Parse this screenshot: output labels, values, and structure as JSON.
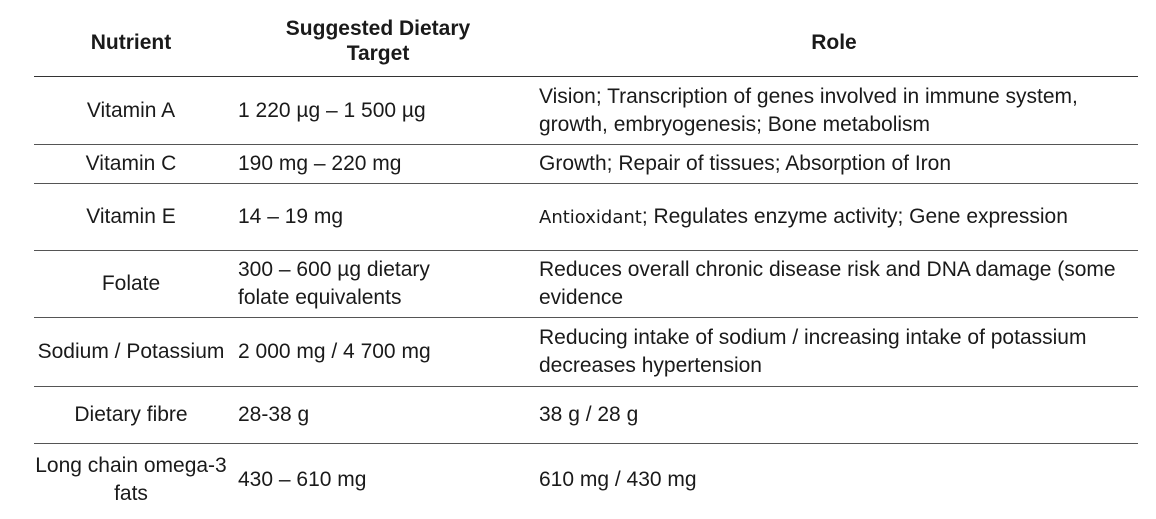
{
  "headers": {
    "nutrient": "Nutrient",
    "target": "Suggested Dietary Target",
    "role": "Role"
  },
  "rows": [
    {
      "nutrient": "Vitamin A",
      "target": "1 220 µg – 1 500 µg",
      "role": "Vision; Transcription of genes involved in immune system, growth, embryogenesis; Bone metabolism"
    },
    {
      "nutrient": "Vitamin C",
      "target": "190 mg – 220 mg",
      "role": "Growth; Repair of tissues; Absorption of Iron"
    },
    {
      "nutrient": "Vitamin E",
      "target": "14 – 19 mg",
      "role_prefix": "Antioxidant",
      "role": "; Regulates enzyme activity; Gene expression"
    },
    {
      "nutrient": "Folate",
      "target": "300 – 600 µg dietary folate equivalents",
      "role": "Reduces overall chronic disease risk and DNA damage (some evidence"
    },
    {
      "nutrient": "Sodium / Potassium",
      "target": "2 000 mg / 4 700 mg",
      "role": "Reducing intake of sodium / increasing intake of potassium decreases hypertension"
    },
    {
      "nutrient": "Dietary fibre",
      "target": "28-38 g",
      "role": "38 g / 28 g"
    },
    {
      "nutrient": "Long chain omega-3 fats",
      "target": "430 – 610 mg",
      "role": "610 mg / 430 mg"
    }
  ]
}
